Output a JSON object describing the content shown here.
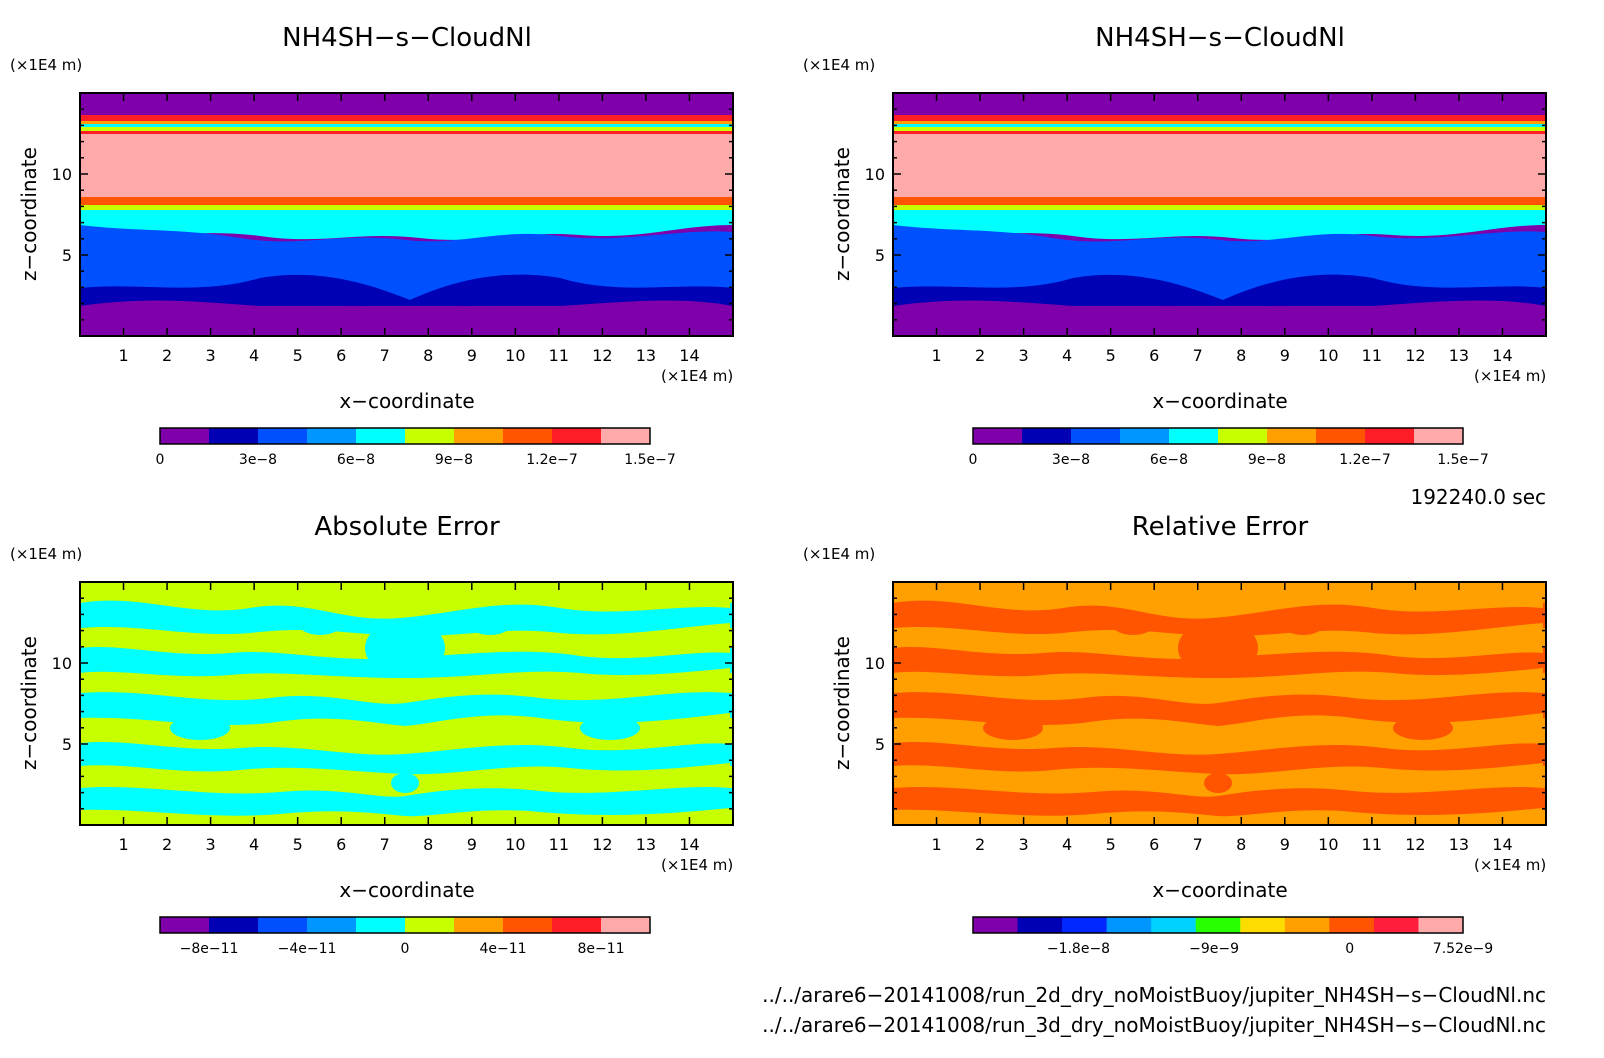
{
  "colors": {
    "cloud_colorbar": [
      "#7f00aa",
      "#0000b4",
      "#0050ff",
      "#0096ff",
      "#00ffff",
      "#c8ff00",
      "#ff9f00",
      "#ff5500",
      "#ff1e28",
      "#ffaaaa"
    ],
    "error_colorbar": [
      "#7f00aa",
      "#0000b4",
      "#0050ff",
      "#0096ff",
      "#00ffff",
      "#c8ff00",
      "#ff9f00",
      "#ff5500",
      "#ff1e28",
      "#ffaaaa"
    ],
    "relative_colorbar": [
      "#7f00aa",
      "#0000b4",
      "#0028ff",
      "#0096ff",
      "#00d2ff",
      "#28ff00",
      "#ffdc00",
      "#ff9f00",
      "#ff5500",
      "#ff1e3c",
      "#ffaaaa"
    ]
  },
  "shared": {
    "x_label": "x−coordinate",
    "y_label": "z−coordinate",
    "x_unit": "(×1E4 m)",
    "y_unit": "(×1E4 m)",
    "x_ticks": [
      "1",
      "2",
      "3",
      "4",
      "5",
      "6",
      "7",
      "8",
      "9",
      "10",
      "11",
      "12",
      "13",
      "14"
    ],
    "y_ticks": [
      "5",
      "10"
    ]
  },
  "time_label": "192240.0 sec",
  "files": [
    "../../arare6−20141008/run_2d_dry_noMoistBuoy/jupiter_NH4SH−s−CloudNl.nc",
    "../../arare6−20141008/run_3d_dry_noMoistBuoy/jupiter_NH4SH−s−CloudNl.nc"
  ],
  "chart_data": [
    {
      "type": "heatmap",
      "title": "NH4SH−s−CloudNl",
      "xlabel": "x−coordinate",
      "ylabel": "z−coordinate",
      "xlim": [
        0,
        15
      ],
      "ylim": [
        0,
        15
      ],
      "colorbar_ticks": [
        "0",
        "3e−8",
        "6e−8",
        "9e−8",
        "1.2e−7",
        "1.5e−7"
      ],
      "colorbar_range": [
        0,
        1.5e-07
      ],
      "field_bands": [
        {
          "z": [
            0.0,
            2.0
          ],
          "value": 1e-08
        },
        {
          "z": [
            2.0,
            3.5
          ],
          "value": 2.5e-08
        },
        {
          "z": [
            3.5,
            6.5
          ],
          "value": 4.5e-08
        },
        {
          "z": [
            6.5,
            7.5
          ],
          "value": 8e-08
        },
        {
          "z": [
            7.5,
            8.0
          ],
          "value": 1.05e-07
        },
        {
          "z": [
            8.0,
            8.5
          ],
          "value": 1.25e-07
        },
        {
          "z": [
            8.5,
            12.5
          ],
          "value": 1.45e-07
        },
        {
          "z": [
            12.5,
            13.3
          ],
          "value": 9e-08
        },
        {
          "z": [
            13.3,
            15.0
          ],
          "value": 1e-08
        }
      ]
    },
    {
      "type": "heatmap",
      "title": "NH4SH−s−CloudNl",
      "xlabel": "x−coordinate",
      "ylabel": "z−coordinate",
      "xlim": [
        0,
        15
      ],
      "ylim": [
        0,
        15
      ],
      "colorbar_ticks": [
        "0",
        "3e−8",
        "6e−8",
        "9e−8",
        "1.2e−7",
        "1.5e−7"
      ],
      "colorbar_range": [
        0,
        1.5e-07
      ]
    },
    {
      "type": "heatmap",
      "title": "Absolute Error",
      "xlabel": "x−coordinate",
      "ylabel": "z−coordinate",
      "xlim": [
        0,
        15
      ],
      "ylim": [
        0,
        15
      ],
      "colorbar_ticks": [
        "−8e−11",
        "−4e−11",
        "0",
        "4e−11",
        "8e−11"
      ],
      "colorbar_range": [
        -1e-10,
        1e-10
      ],
      "field_values": [
        -5e-12,
        5e-12
      ]
    },
    {
      "type": "heatmap",
      "title": "Relative Error",
      "xlabel": "x−coordinate",
      "ylabel": "z−coordinate",
      "xlim": [
        0,
        15
      ],
      "ylim": [
        0,
        15
      ],
      "colorbar_ticks": [
        "−1.8e−8",
        "−9e−9",
        "0",
        "7.52e−9"
      ],
      "colorbar_range": [
        -2.5e-08,
        7.52e-09
      ],
      "field_values": [
        -1e-09,
        -3e-09
      ]
    }
  ]
}
